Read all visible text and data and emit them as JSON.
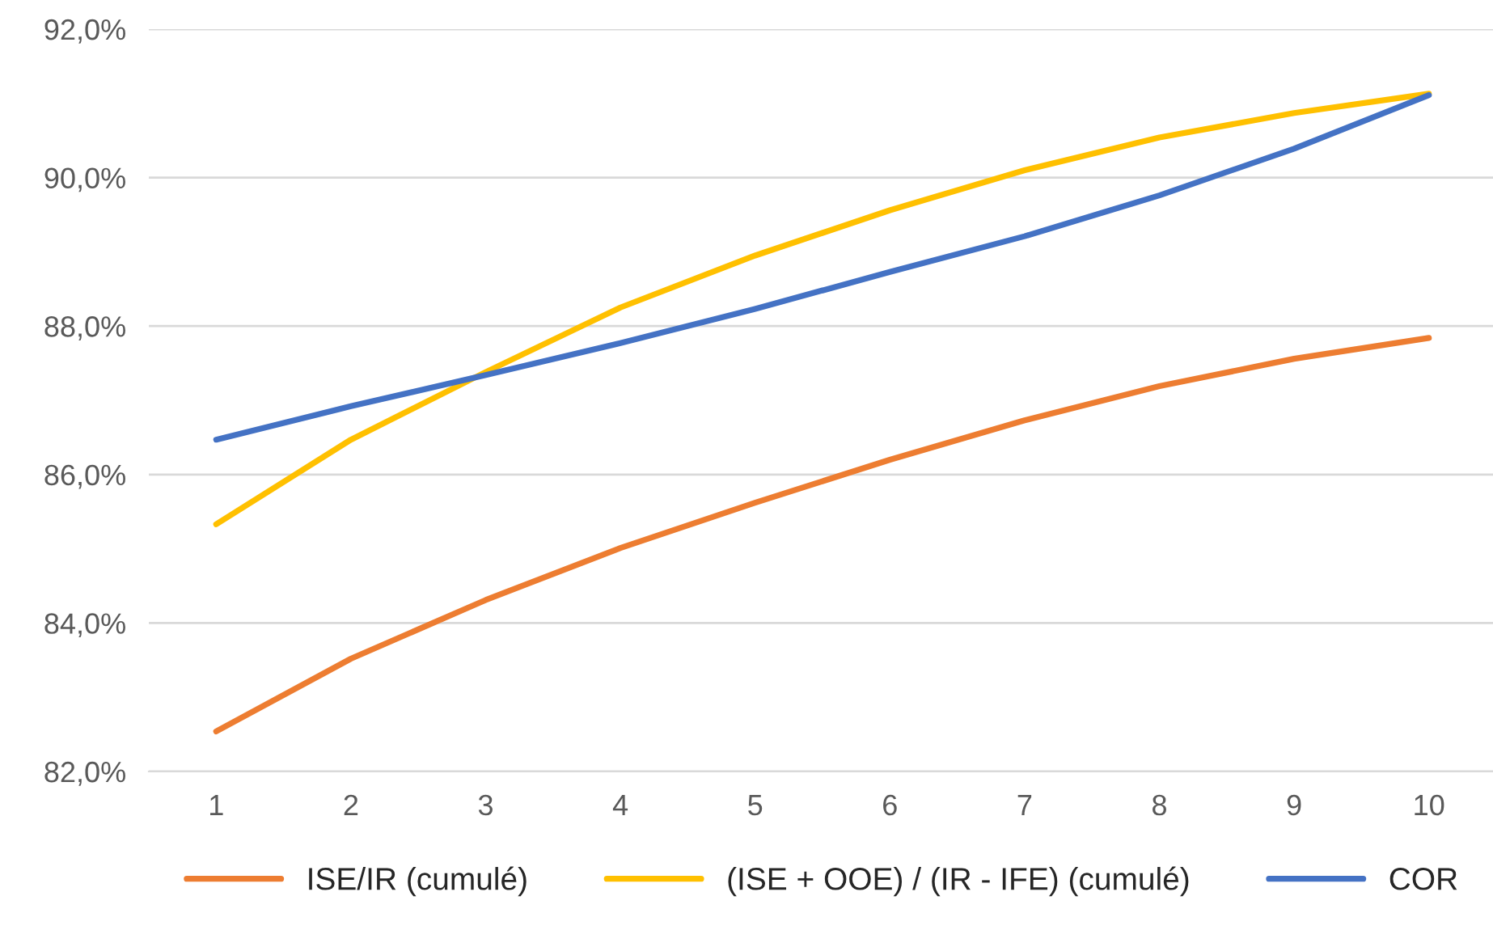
{
  "chart_data": {
    "type": "line",
    "categories": [
      "1",
      "2",
      "3",
      "4",
      "5",
      "6",
      "7",
      "8",
      "9",
      "10"
    ],
    "series": [
      {
        "name": "ISE/IR (cumulé)",
        "color": "#ed7d31",
        "values": [
          82.54,
          83.52,
          84.31,
          85.01,
          85.62,
          86.2,
          86.73,
          87.19,
          87.56,
          87.84
        ]
      },
      {
        "name": "(ISE + OOE) / (IR - IFE) (cumulé)",
        "color": "#ffc000",
        "values": [
          85.33,
          86.47,
          87.38,
          88.25,
          88.95,
          89.56,
          90.1,
          90.54,
          90.87,
          91.13
        ]
      },
      {
        "name": "COR",
        "color": "#4472c4",
        "values": [
          86.47,
          86.92,
          87.34,
          87.77,
          88.23,
          88.73,
          89.21,
          89.76,
          90.39,
          91.11
        ]
      }
    ],
    "ylim": [
      82,
      92
    ],
    "yticks": [
      {
        "value": 82,
        "label": "82,0%"
      },
      {
        "value": 84,
        "label": "84,0%"
      },
      {
        "value": 86,
        "label": "86,0%"
      },
      {
        "value": 88,
        "label": "88,0%"
      },
      {
        "value": 90,
        "label": "90,0%"
      },
      {
        "value": 92,
        "label": "92,0%"
      }
    ],
    "grid": "y",
    "legend": "bottom",
    "marker": "none",
    "line_style": "solid"
  }
}
